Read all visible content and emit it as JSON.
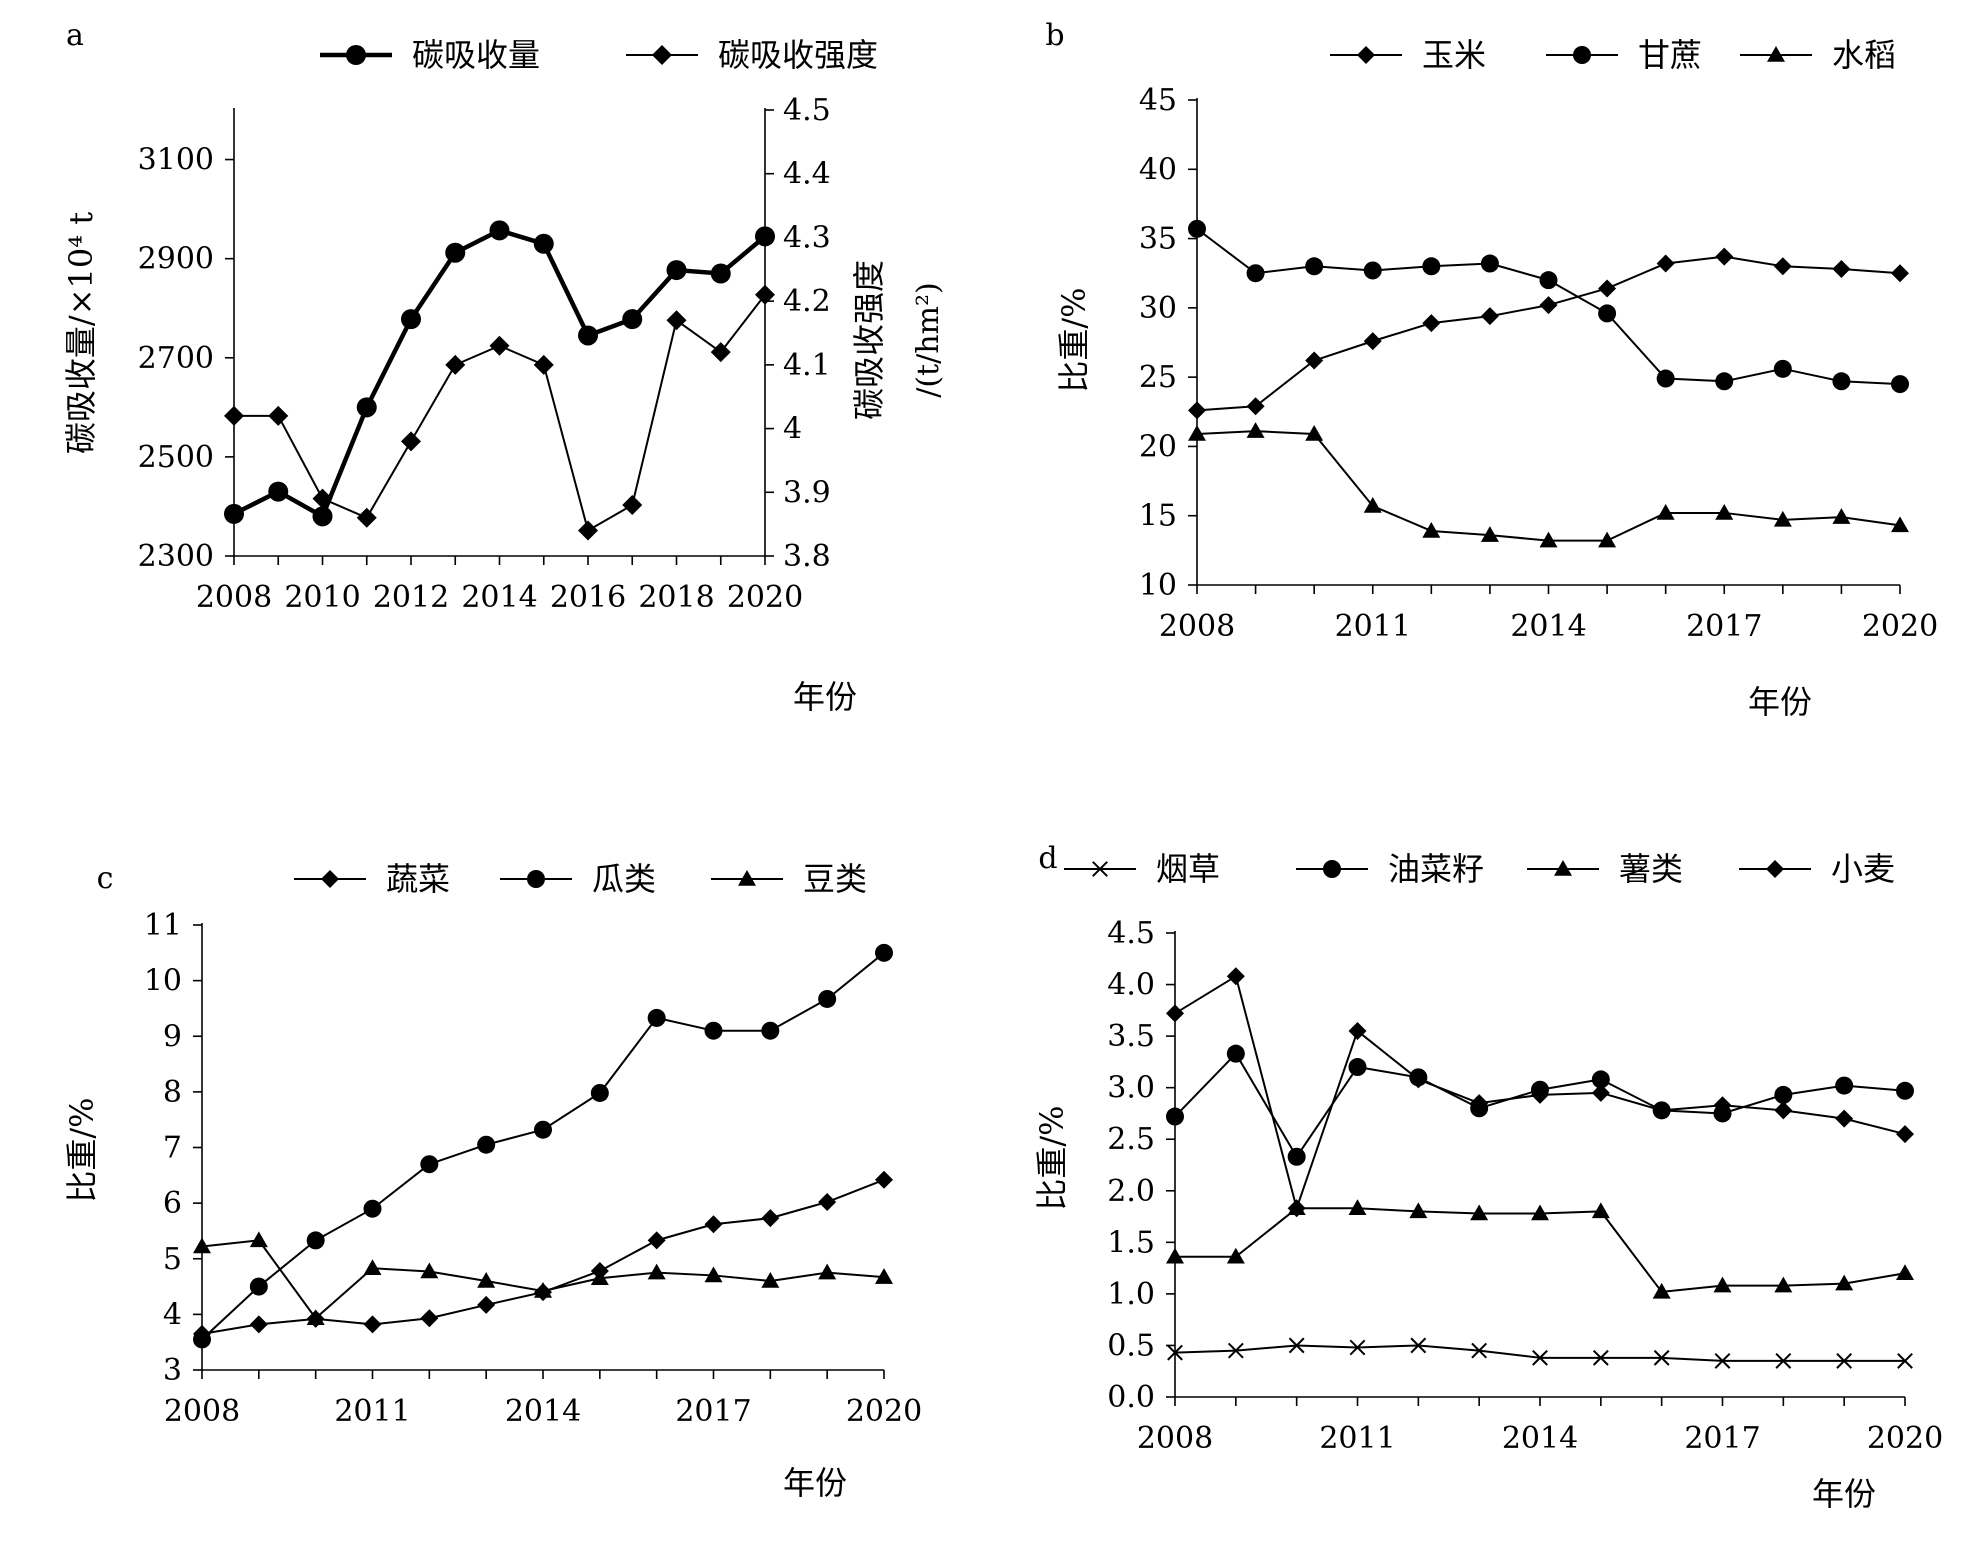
{
  "chart_data": [
    {
      "panel_label": "a",
      "type": "line",
      "x": [
        2008,
        2009,
        2010,
        2011,
        2012,
        2013,
        2014,
        2015,
        2016,
        2017,
        2018,
        2019,
        2020
      ],
      "x_tick_labels": [
        "2008",
        "2010",
        "2012",
        "2014",
        "2016",
        "2018",
        "2020"
      ],
      "xlabel": "年份",
      "ylabel": "碳吸收量/×10⁴ t",
      "ylim": [
        2300,
        3200
      ],
      "y_ticks": [
        "2300",
        "2500",
        "2700",
        "2900",
        "3100"
      ],
      "y2label_line1": "碳吸收强度",
      "y2label_line2": "/(t/hm²)",
      "y2lim": [
        3.8,
        4.5
      ],
      "y2_ticks": [
        "3.8",
        "3.9",
        "4",
        "4.1",
        "4.2",
        "4.3",
        "4.4",
        "4.5"
      ],
      "legend_position": "top",
      "series": [
        {
          "name": "碳吸收量",
          "marker": "circle",
          "axis": "left",
          "bold": true,
          "values": [
            2385,
            2430,
            2380,
            2600,
            2778,
            2912,
            2957,
            2930,
            2745,
            2778,
            2877,
            2870,
            2945
          ]
        },
        {
          "name": "碳吸收强度",
          "marker": "diamond",
          "axis": "right",
          "bold": false,
          "values": [
            4.02,
            4.02,
            3.89,
            3.86,
            3.98,
            4.1,
            4.13,
            4.1,
            3.84,
            3.88,
            4.17,
            4.12,
            4.21
          ]
        }
      ]
    },
    {
      "panel_label": "b",
      "type": "line",
      "x": [
        2008,
        2009,
        2010,
        2011,
        2012,
        2013,
        2014,
        2015,
        2016,
        2017,
        2018,
        2019,
        2020
      ],
      "x_tick_labels": [
        "2008",
        "2011",
        "2014",
        "2017",
        "2020"
      ],
      "xlabel": "年份",
      "ylabel": "比重/%",
      "ylim": [
        10,
        45
      ],
      "y_ticks": [
        "10",
        "15",
        "20",
        "25",
        "30",
        "35",
        "40",
        "45"
      ],
      "legend_position": "top",
      "series": [
        {
          "name": "玉米",
          "marker": "diamond",
          "values": [
            22.6,
            22.9,
            26.2,
            27.6,
            28.9,
            29.4,
            30.2,
            31.4,
            33.2,
            33.7,
            33.0,
            32.8,
            32.5
          ]
        },
        {
          "name": "甘蔗",
          "marker": "circle",
          "values": [
            35.7,
            32.5,
            33.0,
            32.7,
            33.0,
            33.2,
            32.0,
            29.6,
            24.9,
            24.7,
            25.6,
            24.7,
            24.5
          ]
        },
        {
          "name": "水稻",
          "marker": "triangle",
          "values": [
            20.9,
            21.1,
            20.9,
            15.7,
            13.9,
            13.6,
            13.2,
            13.2,
            15.2,
            15.2,
            14.7,
            14.9,
            14.3
          ]
        }
      ]
    },
    {
      "panel_label": "c",
      "type": "line",
      "x": [
        2008,
        2009,
        2010,
        2011,
        2012,
        2013,
        2014,
        2015,
        2016,
        2017,
        2018,
        2019,
        2020
      ],
      "x_tick_labels": [
        "2008",
        "2011",
        "2014",
        "2017",
        "2020"
      ],
      "xlabel": "年份",
      "ylabel": "比重/%",
      "ylim": [
        3,
        11
      ],
      "y_ticks": [
        "3",
        "4",
        "5",
        "6",
        "7",
        "8",
        "9",
        "10",
        "11"
      ],
      "legend_position": "top",
      "series": [
        {
          "name": "蔬菜",
          "marker": "diamond",
          "values": [
            3.65,
            3.82,
            3.92,
            3.82,
            3.93,
            4.17,
            4.4,
            4.78,
            5.33,
            5.62,
            5.73,
            6.02,
            6.42
          ]
        },
        {
          "name": "瓜类",
          "marker": "circle",
          "values": [
            3.55,
            4.5,
            5.33,
            5.9,
            6.7,
            7.05,
            7.32,
            7.98,
            9.33,
            9.1,
            9.1,
            9.67,
            10.5
          ]
        },
        {
          "name": "豆类",
          "marker": "triangle",
          "values": [
            5.22,
            5.33,
            3.93,
            4.83,
            4.77,
            4.6,
            4.42,
            4.65,
            4.75,
            4.7,
            4.6,
            4.75,
            4.67
          ]
        }
      ]
    },
    {
      "panel_label": "d",
      "type": "line",
      "x": [
        2008,
        2009,
        2010,
        2011,
        2012,
        2013,
        2014,
        2015,
        2016,
        2017,
        2018,
        2019,
        2020
      ],
      "x_tick_labels": [
        "2008",
        "2011",
        "2014",
        "2017",
        "2020"
      ],
      "xlabel": "年份",
      "ylabel": "比重/%",
      "ylim": [
        0,
        4.5
      ],
      "y_ticks": [
        "0.0",
        "0.5",
        "1.0",
        "1.5",
        "2.0",
        "2.5",
        "3.0",
        "3.5",
        "4.0",
        "4.5"
      ],
      "legend_position": "top",
      "series": [
        {
          "name": "烟草",
          "marker": "x",
          "values": [
            0.43,
            0.45,
            0.5,
            0.48,
            0.5,
            0.45,
            0.38,
            0.38,
            0.38,
            0.35,
            0.35,
            0.35,
            0.35
          ]
        },
        {
          "name": "油菜籽",
          "marker": "circle",
          "values": [
            2.72,
            3.33,
            2.33,
            3.2,
            3.1,
            2.8,
            2.98,
            3.08,
            2.78,
            2.75,
            2.93,
            3.02,
            2.97
          ]
        },
        {
          "name": "薯类",
          "marker": "triangle",
          "values": [
            1.36,
            1.36,
            1.83,
            1.83,
            1.8,
            1.78,
            1.78,
            1.8,
            1.02,
            1.08,
            1.08,
            1.1,
            1.2
          ]
        },
        {
          "name": "小麦",
          "marker": "diamond",
          "values": [
            3.72,
            4.08,
            1.83,
            3.55,
            3.08,
            2.85,
            2.93,
            2.95,
            2.78,
            2.83,
            2.78,
            2.7,
            2.55
          ]
        }
      ]
    }
  ]
}
